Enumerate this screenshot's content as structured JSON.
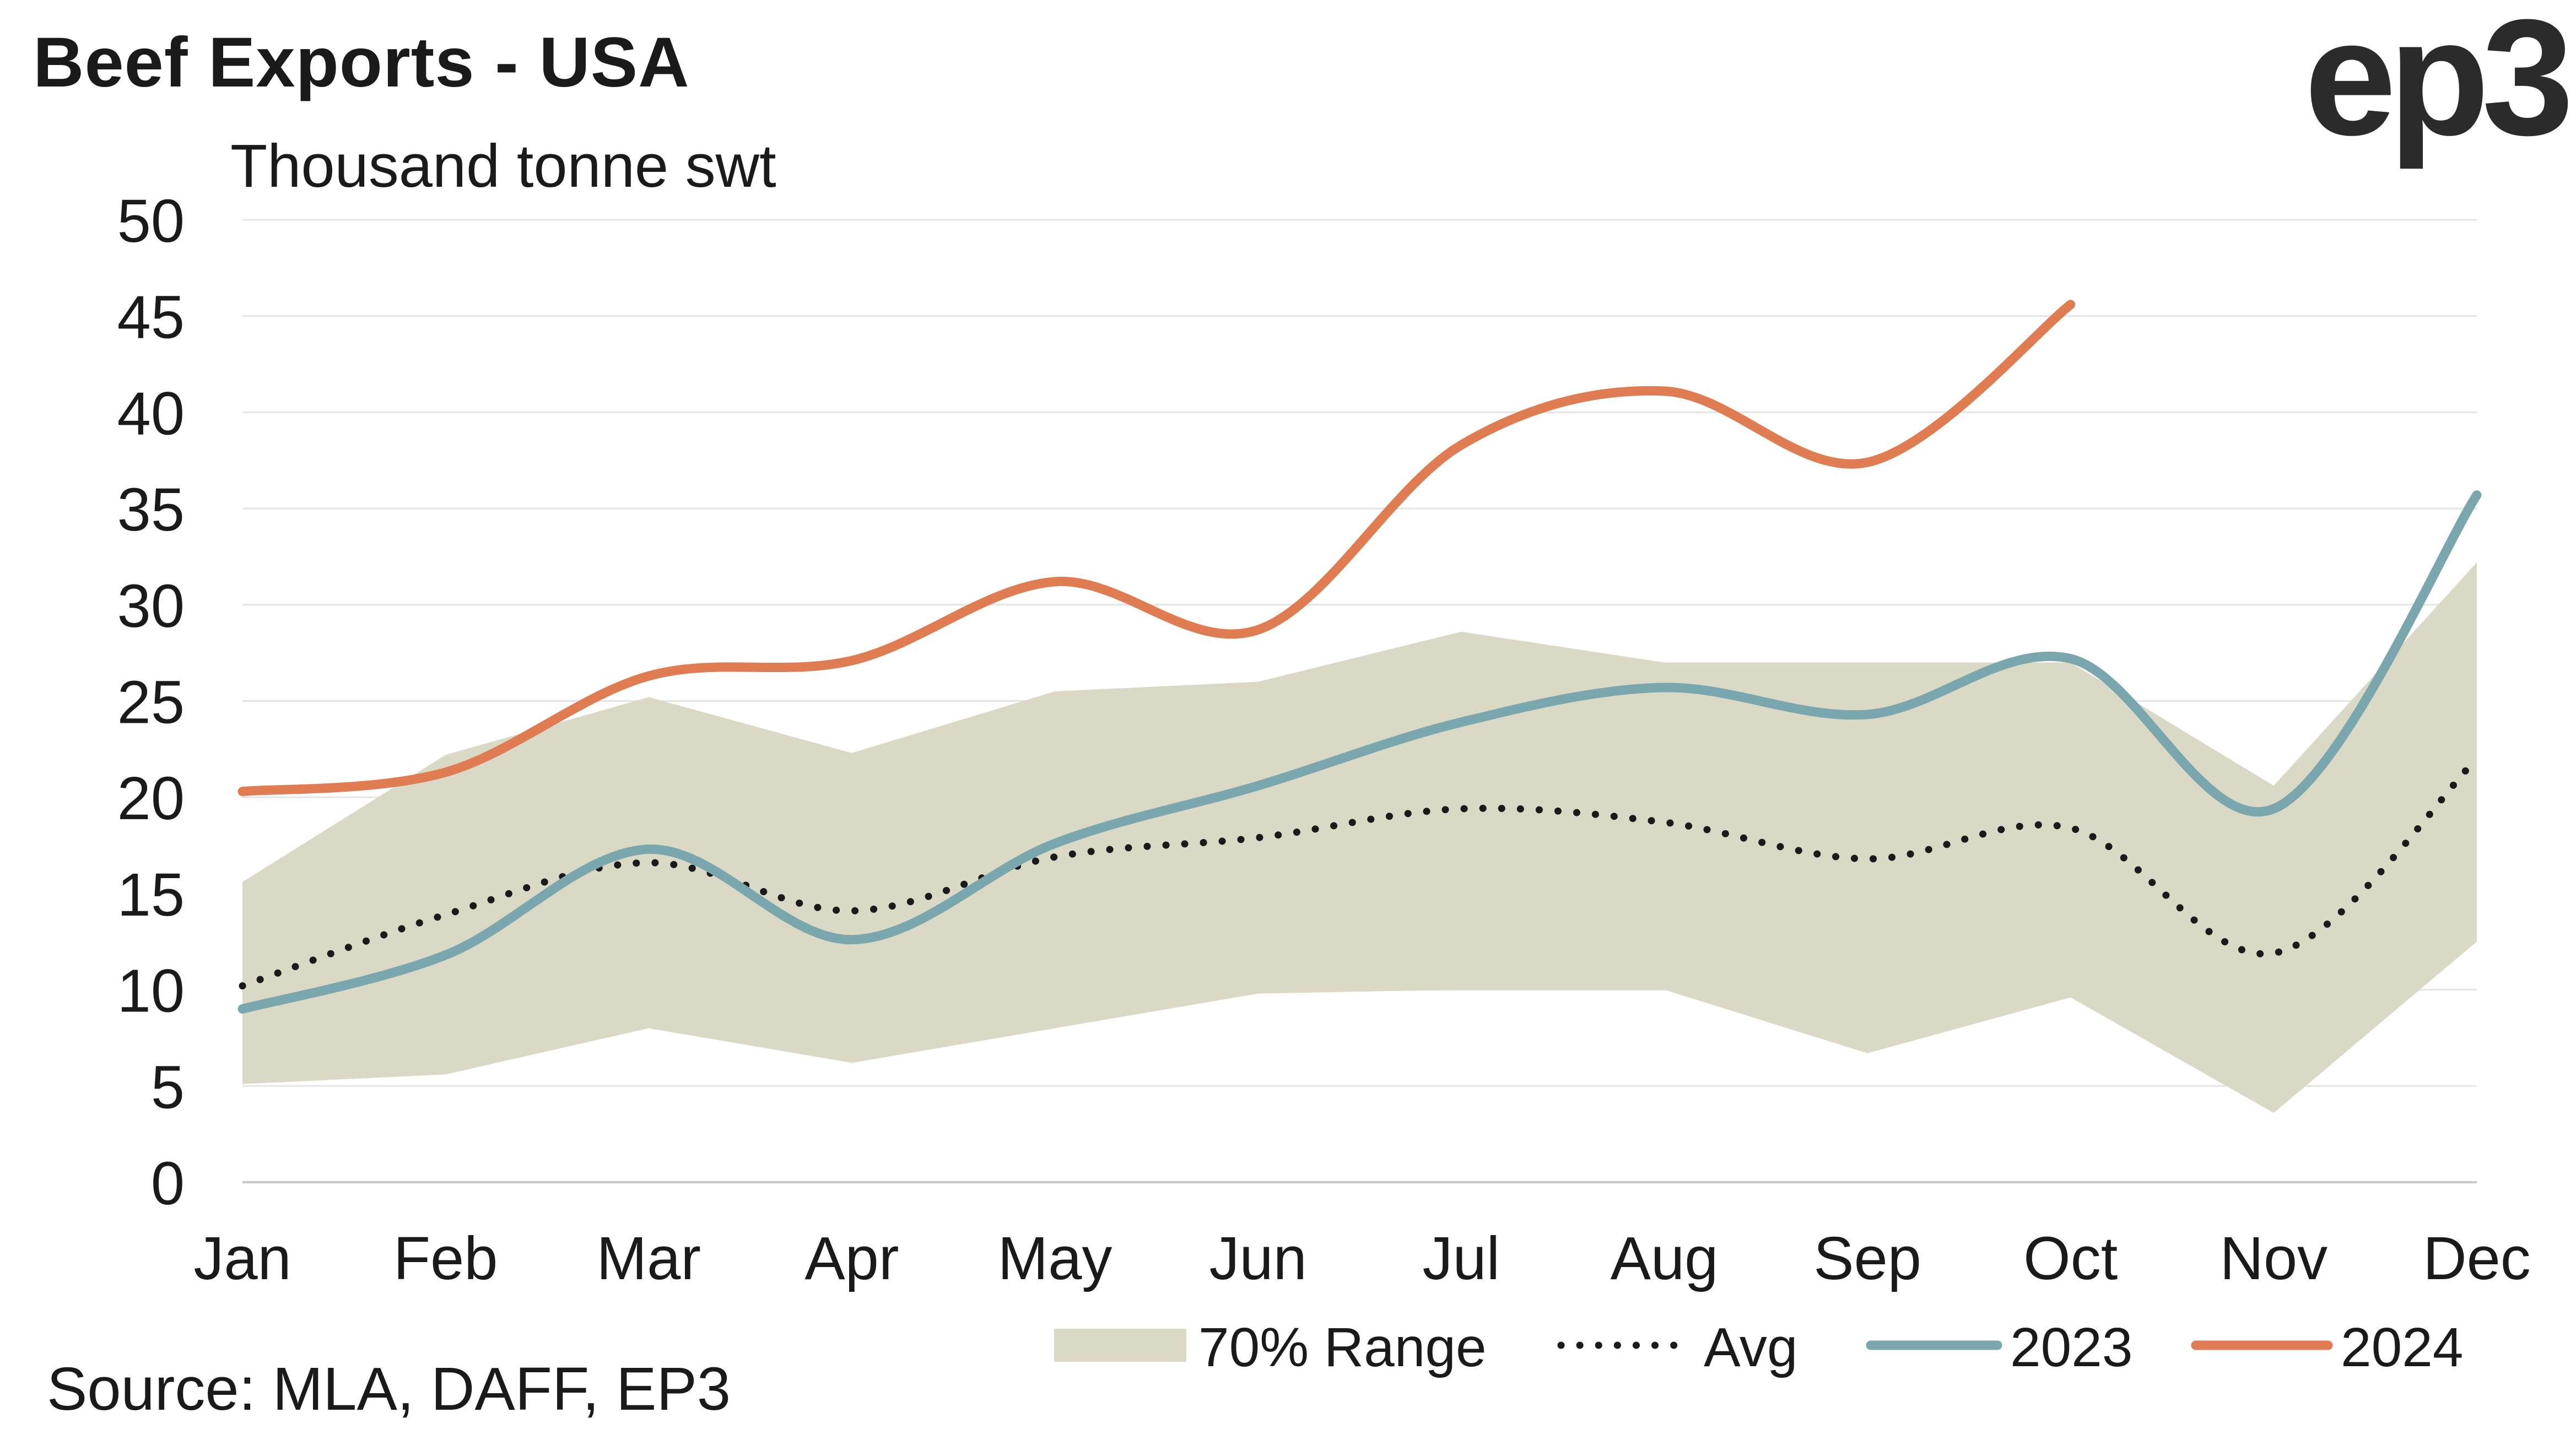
{
  "header": {
    "title": "Beef Exports - USA",
    "logo_text": "ep3"
  },
  "footer": {
    "source": "Source: MLA, DAFF, EP3"
  },
  "chart_data": {
    "type": "line",
    "title": "Beef Exports - USA",
    "ylabel": "Thousand tonne swt",
    "xlabel": "",
    "categories": [
      "Jan",
      "Feb",
      "Mar",
      "Apr",
      "May",
      "Jun",
      "Jul",
      "Aug",
      "Sep",
      "Oct",
      "Nov",
      "Dec"
    ],
    "ylim": [
      0,
      50
    ],
    "yticks": [
      0,
      5,
      10,
      15,
      20,
      25,
      30,
      35,
      40,
      45,
      50
    ],
    "grid": "horizontal",
    "legend_position": "bottom",
    "range_band": {
      "name": "70% Range",
      "color": "#d9d9c6",
      "lower": [
        5.1,
        5.6,
        8.0,
        6.2,
        8.0,
        9.8,
        10.0,
        10.0,
        6.7,
        9.6,
        3.6,
        12.5
      ],
      "upper": [
        15.6,
        22.2,
        25.2,
        22.3,
        25.5,
        26.0,
        28.6,
        27.0,
        27.0,
        27.0,
        20.6,
        32.2
      ]
    },
    "series": [
      {
        "name": "Avg",
        "style": "dotted",
        "color": "#1a1a1a",
        "values": [
          10.2,
          13.9,
          16.6,
          14.1,
          16.9,
          17.9,
          19.4,
          18.7,
          16.8,
          18.4,
          11.9,
          22.0
        ]
      },
      {
        "name": "2023",
        "style": "solid",
        "color": "#7aa6ad",
        "values": [
          9.0,
          11.8,
          17.3,
          12.6,
          17.6,
          20.6,
          23.9,
          25.7,
          24.3,
          27.2,
          19.4,
          35.7
        ]
      },
      {
        "name": "2024",
        "style": "solid",
        "color": "#e07c51",
        "values": [
          20.3,
          21.3,
          26.3,
          27.1,
          31.2,
          28.7,
          38.3,
          41.1,
          37.4,
          45.6,
          null,
          null
        ]
      }
    ]
  }
}
